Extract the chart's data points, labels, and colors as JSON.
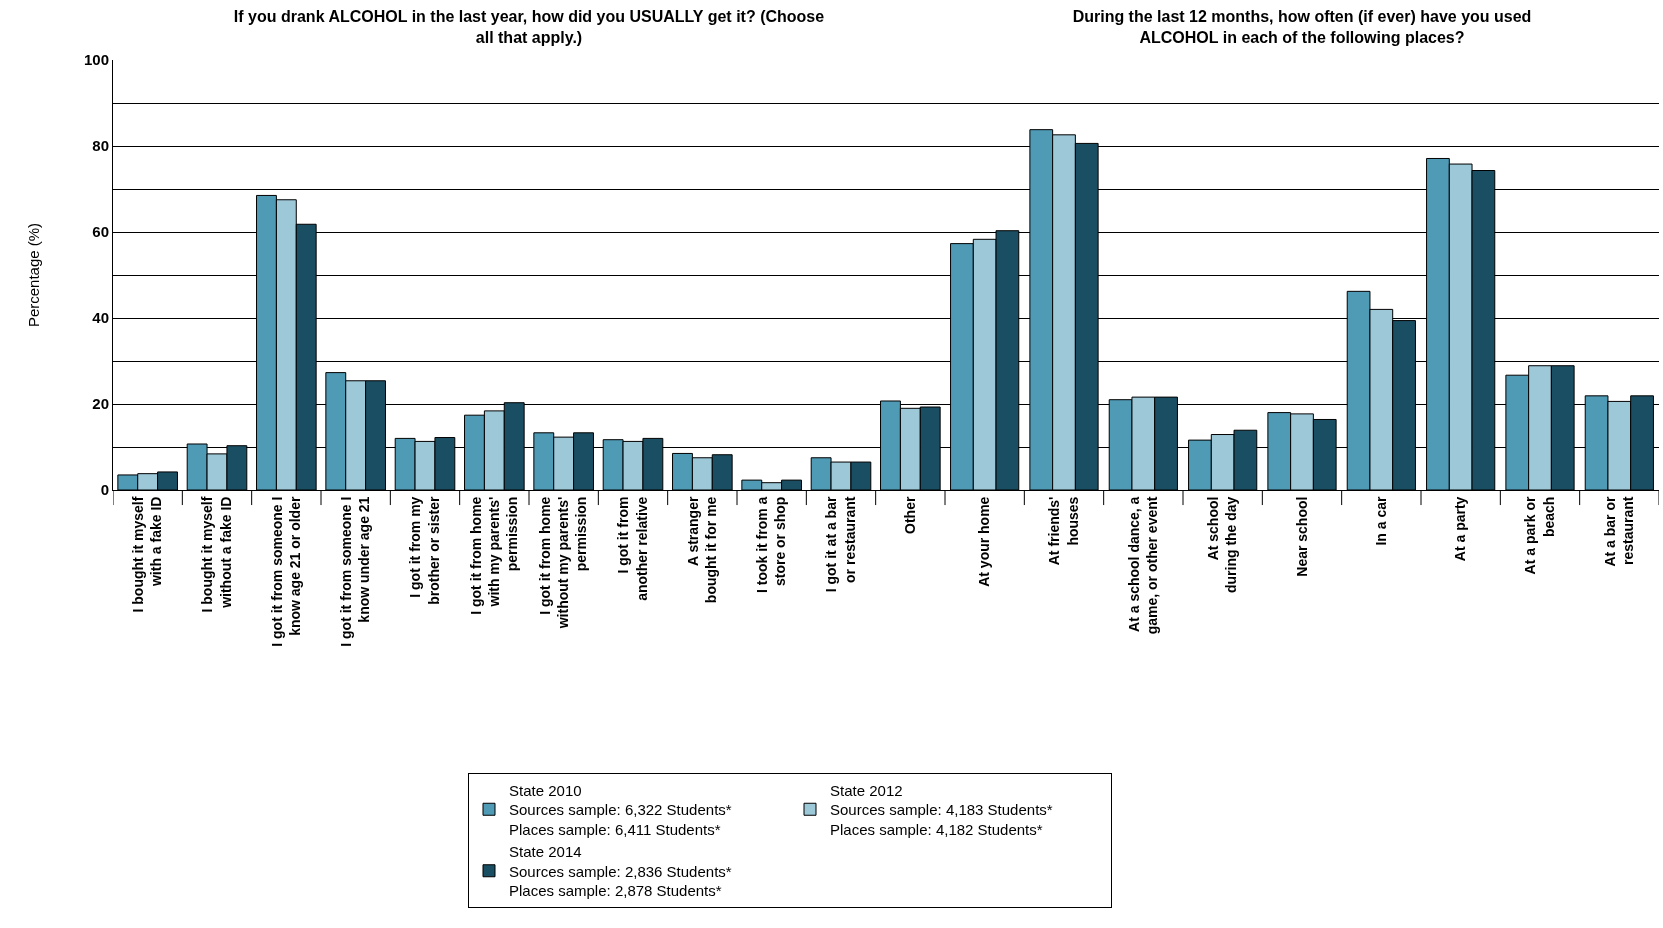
{
  "chart_data": [
    {
      "type": "bar",
      "title": "If you drank ALCOHOL in the last year, how did you USUALLY get it? (Choose all that apply.)",
      "ylabel": "Percentage (%)",
      "categories": [
        "I bought it myself with a fake ID",
        "I bought it myself without a fake ID",
        "I got it from someone I know age 21 or older",
        "I got it from someone I know under age 21",
        "I got it from my brother or sister",
        "I got it from home with my parents' permission",
        "I got it from home without my parents' permission",
        "I got it from another relative",
        "A stranger bought it for me",
        "I took it from a store or shop",
        "I got it at a bar or restaurant",
        "Other"
      ],
      "series": [
        {
          "name": "State 2010\nSources sample: 6,322 Students*\nPlaces sample: 6,411 Students*",
          "color": "#4f9ab5",
          "values": [
            3.5,
            10.7,
            68.5,
            27.3,
            12.0,
            17.4,
            13.3,
            11.7,
            8.5,
            2.3,
            7.5,
            20.7
          ]
        },
        {
          "name": "State 2012\nSources sample: 4,183 Students*\nPlaces sample: 4,182 Students*",
          "color": "#9cc8d8",
          "values": [
            3.8,
            8.4,
            67.5,
            25.4,
            11.3,
            18.4,
            12.3,
            11.3,
            7.5,
            1.7,
            6.5,
            19.0
          ]
        },
        {
          "name": "State 2014\nSources sample: 2,836 Students*\nPlaces sample: 2,878 Students*",
          "color": "#1a4f63",
          "values": [
            4.2,
            10.3,
            61.8,
            25.4,
            12.2,
            20.3,
            13.3,
            12.0,
            8.2,
            2.3,
            6.5,
            19.3
          ]
        }
      ],
      "ylim": [
        0,
        100
      ],
      "yticks": [
        0,
        {
          "value": 10,
          "label": null
        },
        20,
        {
          "value": 30,
          "label": null
        },
        40,
        {
          "value": 50,
          "label": null
        },
        60,
        {
          "value": 70,
          "label": null
        },
        80,
        {
          "value": 90,
          "label": null
        },
        100
      ],
      "grid": "y",
      "legend": "bottom"
    },
    {
      "type": "bar",
      "title": "During the last 12 months, how often (if ever) have you used ALCOHOL in each of the following places?",
      "categories": [
        "At your home",
        "At friends' houses",
        "At a school dance, a game, or other event",
        "At school during the day",
        "Near school",
        "In a car",
        "At a party",
        "At a park or beach",
        "At a bar or restaurant"
      ],
      "series": [
        {
          "color": "#4f9ab5",
          "values": [
            57.3,
            83.8,
            21.0,
            11.6,
            18.0,
            46.2,
            77.1,
            26.7,
            21.9
          ]
        },
        {
          "color": "#9cc8d8",
          "values": [
            58.3,
            82.6,
            21.6,
            12.9,
            17.7,
            42.0,
            75.8,
            28.9,
            20.6
          ]
        },
        {
          "color": "#1a4f63",
          "values": [
            60.3,
            80.6,
            21.6,
            13.9,
            16.4,
            39.4,
            74.3,
            28.9,
            21.9
          ]
        }
      ],
      "ylim": [
        0,
        100
      ],
      "yticks": [
        0,
        {
          "value": 10,
          "label": null
        },
        20,
        {
          "value": 30,
          "label": null
        },
        40,
        {
          "value": 50,
          "label": null
        },
        60,
        {
          "value": 70,
          "label": null
        },
        80,
        {
          "value": 90,
          "label": null
        },
        100
      ],
      "grid": "y",
      "tick_labels": "x"
    }
  ]
}
